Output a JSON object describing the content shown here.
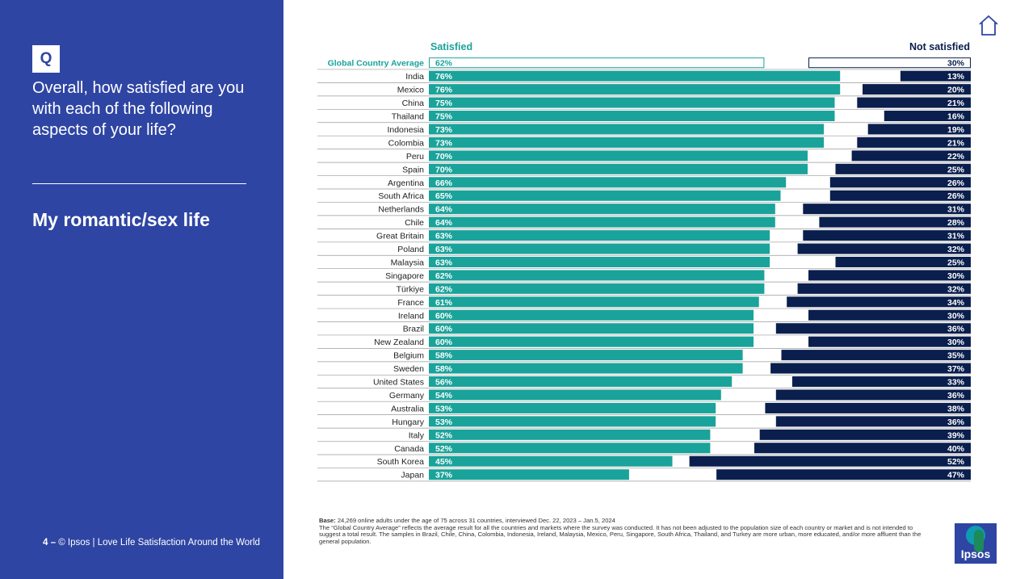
{
  "sidebar": {
    "q_label": "Q",
    "question": "Overall, how satisfied are you with each of the following aspects of your life?",
    "topic": "My romantic/sex life",
    "footer_page": "4 –",
    "footer_text": "© Ipsos | Love Life Satisfaction Around the World"
  },
  "logo": {
    "text": "Ipsos"
  },
  "notes": {
    "base_label": "Base:",
    "base_text": "24,269 online adults under the age of 75 across 31 countries, interviewed Dec. 22, 2023 – Jan.5, 2024",
    "body": "The “Global Country Average” reflects the average result for all the countries and markets where the survey was conducted. It has not been adjusted to the population size of each country or market and is not intended to suggest a total result.    The samples in Brazil, Chile, China, Colombia, Indonesia, Ireland, Malaysia, Mexico, Peru, Singapore, South Africa, Thailand, and Turkey are more urban, more educated, and/or more affluent than the general population."
  },
  "colors": {
    "panel": "#2e45a3",
    "satisfied": "#1aa39a",
    "not_satisfied": "#0a1f4d"
  },
  "chart_data": {
    "type": "bar",
    "series": [
      {
        "name": "Satisfied",
        "values": [
          62,
          76,
          76,
          75,
          75,
          73,
          73,
          70,
          70,
          66,
          65,
          64,
          64,
          63,
          63,
          63,
          62,
          62,
          61,
          60,
          60,
          60,
          58,
          58,
          56,
          54,
          53,
          53,
          52,
          52,
          45,
          37
        ]
      },
      {
        "name": "Not satisfied",
        "values": [
          30,
          13,
          20,
          21,
          16,
          19,
          21,
          22,
          25,
          26,
          26,
          31,
          28,
          31,
          32,
          25,
          30,
          32,
          34,
          30,
          36,
          30,
          35,
          37,
          33,
          36,
          38,
          36,
          39,
          40,
          52,
          47
        ]
      }
    ],
    "categories": [
      "Global Country Average",
      "India",
      "Mexico",
      "China",
      "Thailand",
      "Indonesia",
      "Colombia",
      "Peru",
      "Spain",
      "Argentina",
      "South Africa",
      "Netherlands",
      "Chile",
      "Great Britain",
      "Poland",
      "Malaysia",
      "Singapore",
      "Türkiye",
      "France",
      "Ireland",
      "Brazil",
      "New Zealand",
      "Belgium",
      "Sweden",
      "United States",
      "Germany",
      "Australia",
      "Hungary",
      "Italy",
      "Canada",
      "South Korea",
      "Japan"
    ],
    "value_suffix": "%",
    "highlight_first": true,
    "layout": "diverging-horizontal"
  }
}
